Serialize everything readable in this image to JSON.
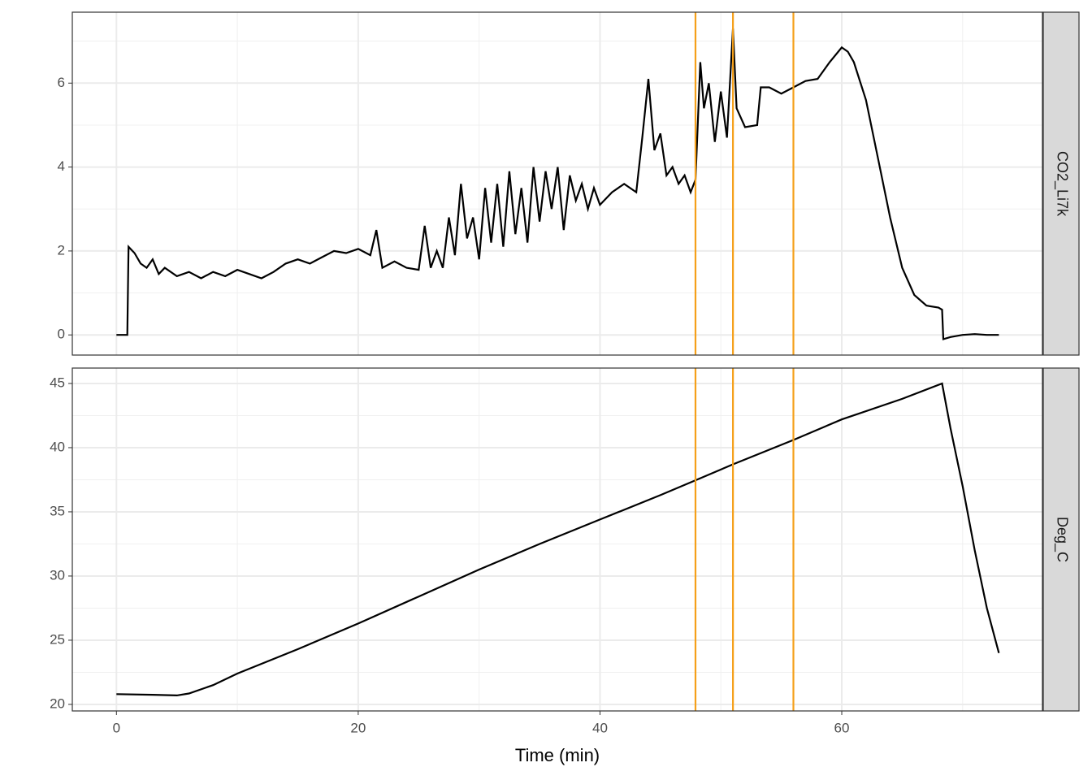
{
  "chart_data": {
    "type": "line",
    "x_label": "Time (min)",
    "xlim": [
      -3.65,
      76.6
    ],
    "xticks": [
      0,
      20,
      40,
      60
    ],
    "minor_xticks": [
      10,
      30,
      50,
      70
    ],
    "grid": true,
    "vlines": [
      47.9,
      51,
      56
    ],
    "vline_color": "#f5a01a",
    "series": [
      {
        "name": "CO2_Li7k",
        "color": "#000000",
        "ylim": [
          -0.48,
          7.69
        ],
        "yticks": [
          0,
          2,
          4,
          6
        ],
        "minor_yticks": [
          1,
          3,
          5,
          7
        ],
        "x": [
          0,
          0.5,
          0.9,
          1.0,
          1.5,
          2,
          2.5,
          3,
          3.5,
          4,
          5,
          6,
          7,
          8,
          9,
          10,
          11,
          12,
          13,
          14,
          15,
          16,
          17,
          18,
          19,
          20,
          21,
          21.5,
          22,
          23,
          24,
          25,
          25.5,
          26,
          26.5,
          27,
          27.5,
          28,
          28.5,
          29,
          29.5,
          30,
          30.5,
          31,
          31.5,
          32,
          32.5,
          33,
          33.5,
          34,
          34.5,
          35,
          35.5,
          36,
          36.5,
          37,
          37.5,
          38,
          38.5,
          39,
          39.5,
          40,
          41,
          42,
          43,
          43.5,
          44,
          44.5,
          45,
          45.5,
          46,
          46.5,
          47,
          47.5,
          47.9,
          48.3,
          48.6,
          49,
          49.5,
          50,
          50.5,
          51,
          51.3,
          52,
          53,
          53.3,
          54,
          55,
          56,
          57,
          58,
          59,
          60,
          60.5,
          61,
          62,
          63,
          64,
          65,
          66,
          67,
          68,
          68.3,
          68.4,
          69,
          70,
          71,
          72,
          73
        ],
        "values": [
          0,
          0,
          0,
          2.1,
          1.95,
          1.7,
          1.6,
          1.8,
          1.45,
          1.6,
          1.4,
          1.5,
          1.35,
          1.5,
          1.4,
          1.55,
          1.45,
          1.35,
          1.5,
          1.7,
          1.8,
          1.7,
          1.85,
          2.0,
          1.95,
          2.05,
          1.9,
          2.5,
          1.6,
          1.75,
          1.6,
          1.55,
          2.6,
          1.6,
          2.0,
          1.6,
          2.8,
          1.9,
          3.6,
          2.3,
          2.8,
          1.8,
          3.5,
          2.2,
          3.6,
          2.1,
          3.9,
          2.4,
          3.5,
          2.2,
          4.0,
          2.7,
          3.9,
          3.0,
          4.0,
          2.5,
          3.8,
          3.2,
          3.6,
          3.0,
          3.5,
          3.1,
          3.4,
          3.6,
          3.4,
          4.7,
          6.1,
          4.4,
          4.8,
          3.8,
          4.0,
          3.6,
          3.8,
          3.4,
          3.7,
          6.5,
          5.4,
          6.0,
          4.6,
          5.8,
          4.7,
          7.3,
          5.4,
          4.95,
          5.0,
          5.9,
          5.9,
          5.75,
          5.9,
          6.05,
          6.1,
          6.5,
          6.85,
          6.75,
          6.5,
          5.6,
          4.2,
          2.8,
          1.6,
          0.95,
          0.7,
          0.65,
          0.6,
          -0.1,
          -0.05,
          0,
          0.02,
          0,
          0
        ]
      },
      {
        "name": "Deg_C",
        "color": "#000000",
        "ylim": [
          19.49,
          46.2
        ],
        "yticks": [
          20,
          25,
          30,
          35,
          40,
          45
        ],
        "minor_yticks": [
          22.5,
          27.5,
          32.5,
          37.5,
          42.5
        ],
        "x": [
          0,
          3,
          5,
          6,
          8,
          10,
          15,
          20,
          25,
          30,
          35,
          40,
          45,
          48,
          51,
          56,
          60,
          65,
          68.3,
          69,
          70,
          71,
          72,
          73
        ],
        "values": [
          20.8,
          20.75,
          20.7,
          20.85,
          21.5,
          22.4,
          24.3,
          26.3,
          28.4,
          30.5,
          32.5,
          34.4,
          36.3,
          37.5,
          38.7,
          40.6,
          42.2,
          43.8,
          45.0,
          41.5,
          37,
          32,
          27.5,
          24
        ]
      }
    ]
  }
}
